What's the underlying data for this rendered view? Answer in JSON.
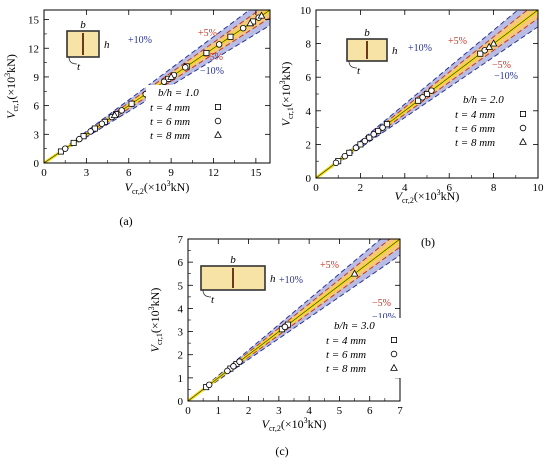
{
  "colors": {
    "band10": "#b9bde6",
    "band5": "#f5c77a",
    "line10": "#2b3590",
    "line5": "#c0392b",
    "ideal": "#f2e100",
    "section_fill": "#f7e3a6",
    "section_web": "#6b3a1a",
    "axis": "#000000"
  },
  "chart_data": [
    {
      "type": "scatter",
      "panel_label": "(a)",
      "xlabel_main": "V",
      "xlabel_sub": "cr,2",
      "xlabel_unit_pre": "(×10",
      "xlabel_exp": "3",
      "xlabel_unit_post": "kN)",
      "ylabel_main": "V",
      "ylabel_sub": "cr,1",
      "ylabel_unit_pre": "(×10",
      "ylabel_exp": "3",
      "ylabel_unit_post": "kN)",
      "xlim": [
        0,
        16
      ],
      "ylim": [
        0,
        16
      ],
      "xticks": [
        0,
        3,
        6,
        9,
        12,
        15
      ],
      "yticks": [
        0,
        3,
        6,
        9,
        12,
        15
      ],
      "xtick_labels": [
        "0",
        "3",
        "6",
        "9",
        "12",
        "15"
      ],
      "ytick_labels": [
        "0",
        "3",
        "6",
        "9",
        "12",
        "15"
      ],
      "xminor": [
        1.5,
        4.5,
        7.5,
        10.5,
        13.5
      ],
      "yminor": [
        1.5,
        4.5,
        7.5,
        10.5,
        13.5
      ],
      "bands": {
        "plus10": "+10%",
        "plus5": "+5%",
        "minus5": "−5%",
        "minus10": "−10%"
      },
      "section_labels": {
        "b": "b",
        "h": "h",
        "t": "t"
      },
      "legend": {
        "ratio": "b/h = 1.0",
        "entries": [
          {
            "label": "t = 4 mm",
            "marker": "square"
          },
          {
            "label": "t = 6 mm",
            "marker": "circle"
          },
          {
            "label": "t = 8 mm",
            "marker": "triangle"
          }
        ]
      },
      "series": [
        {
          "marker": "square",
          "x": [
            1.2,
            2.1,
            2.8,
            3.6,
            4.3,
            5.1,
            6.2,
            7.6,
            8.8,
            10.1,
            11.5,
            13.2,
            14.8
          ],
          "y": [
            1.2,
            2.1,
            2.8,
            3.6,
            4.3,
            5.1,
            6.2,
            7.6,
            8.8,
            10.1,
            11.5,
            13.2,
            14.8
          ]
        },
        {
          "marker": "circle",
          "x": [
            1.5,
            2.5,
            3.3,
            4.1,
            4.8,
            5.5,
            7.2,
            8.5,
            9.2,
            10.0,
            12.4,
            14.1,
            15.2
          ],
          "y": [
            1.5,
            2.5,
            3.3,
            4.1,
            4.8,
            5.5,
            7.2,
            8.5,
            9.2,
            10.0,
            12.4,
            14.1,
            15.2
          ]
        },
        {
          "marker": "triangle",
          "x": [
            5.0,
            9.0,
            14.6,
            15.4
          ],
          "y": [
            5.0,
            9.0,
            14.6,
            15.4
          ]
        }
      ]
    },
    {
      "type": "scatter",
      "panel_label": "(b)",
      "xlabel_main": "V",
      "xlabel_sub": "cr,2",
      "xlabel_unit_pre": "(×10",
      "xlabel_exp": "3",
      "xlabel_unit_post": "kN)",
      "ylabel_main": "V",
      "ylabel_sub": "cr,1",
      "ylabel_unit_pre": "(×10",
      "ylabel_exp": "3",
      "ylabel_unit_post": "kN)",
      "xlim": [
        0,
        10
      ],
      "ylim": [
        0,
        10
      ],
      "xticks": [
        0,
        2,
        4,
        6,
        8,
        10
      ],
      "yticks": [
        0,
        2,
        4,
        6,
        8,
        10
      ],
      "xtick_labels": [
        "0",
        "2",
        "4",
        "6",
        "8",
        "10"
      ],
      "ytick_labels": [
        "0",
        "2",
        "4",
        "6",
        "8",
        "10"
      ],
      "xminor": [
        1,
        3,
        5,
        7,
        9
      ],
      "yminor": [
        1,
        3,
        5,
        7,
        9
      ],
      "bands": {
        "plus10": "+10%",
        "plus5": "+5%",
        "minus5": "−5%",
        "minus10": "−10%"
      },
      "section_labels": {
        "b": "b",
        "h": "h",
        "t": "t"
      },
      "legend": {
        "ratio": "b/h = 2.0",
        "entries": [
          {
            "label": "t = 4 mm",
            "marker": "square"
          },
          {
            "label": "t = 6 mm",
            "marker": "circle"
          },
          {
            "label": "t = 8 mm",
            "marker": "triangle"
          }
        ]
      },
      "series": [
        {
          "marker": "square",
          "x": [
            1.0,
            1.5,
            2.0,
            2.4,
            2.8,
            3.2,
            4.6,
            5.0,
            7.4
          ],
          "y": [
            1.0,
            1.5,
            2.0,
            2.4,
            2.8,
            3.2,
            4.6,
            5.0,
            7.4
          ]
        },
        {
          "marker": "circle",
          "x": [
            0.9,
            1.3,
            1.8,
            2.2,
            2.6,
            3.0,
            4.8,
            5.2,
            7.6
          ],
          "y": [
            0.9,
            1.3,
            1.8,
            2.2,
            2.6,
            3.0,
            4.8,
            5.2,
            7.6
          ]
        },
        {
          "marker": "triangle",
          "x": [
            7.8,
            8.0
          ],
          "y": [
            7.8,
            8.0
          ]
        }
      ]
    },
    {
      "type": "scatter",
      "panel_label": "(c)",
      "xlabel_main": "V",
      "xlabel_sub": "cr,2",
      "xlabel_unit_pre": "(×10",
      "xlabel_exp": "3",
      "xlabel_unit_post": "kN)",
      "ylabel_main": "V",
      "ylabel_sub": "cr,1",
      "ylabel_unit_pre": "(×10",
      "ylabel_exp": "3",
      "ylabel_unit_post": "kN)",
      "xlim": [
        0,
        7
      ],
      "ylim": [
        0,
        7
      ],
      "xticks": [
        0,
        1,
        2,
        3,
        4,
        5,
        6,
        7
      ],
      "yticks": [
        0,
        1,
        2,
        3,
        4,
        5,
        6,
        7
      ],
      "xtick_labels": [
        "0",
        "1",
        "2",
        "3",
        "4",
        "5",
        "6",
        "7"
      ],
      "ytick_labels": [
        "0",
        "1",
        "2",
        "3",
        "4",
        "5",
        "6",
        "7"
      ],
      "xminor": [
        0.5,
        1.5,
        2.5,
        3.5,
        4.5,
        5.5,
        6.5
      ],
      "yminor": [
        0.5,
        1.5,
        2.5,
        3.5,
        4.5,
        5.5,
        6.5
      ],
      "bands": {
        "plus10": "+10%",
        "plus5": "+5%",
        "minus5": "−5%",
        "minus10": "−10%"
      },
      "section_labels": {
        "b": "b",
        "h": "h",
        "t": "t"
      },
      "legend": {
        "ratio": "b/h = 3.0",
        "entries": [
          {
            "label": "t = 4 mm",
            "marker": "square"
          },
          {
            "label": "t = 6 mm",
            "marker": "circle"
          },
          {
            "label": "t = 8 mm",
            "marker": "triangle"
          }
        ]
      },
      "series": [
        {
          "marker": "square",
          "x": [
            0.6,
            1.4,
            1.6,
            3.1,
            3.3
          ],
          "y": [
            0.6,
            1.4,
            1.6,
            3.1,
            3.3
          ]
        },
        {
          "marker": "circle",
          "x": [
            0.7,
            1.3,
            1.5,
            1.7,
            3.2
          ],
          "y": [
            0.7,
            1.3,
            1.5,
            1.7,
            3.2
          ]
        },
        {
          "marker": "triangle",
          "x": [
            5.5
          ],
          "y": [
            5.5
          ]
        }
      ]
    }
  ]
}
